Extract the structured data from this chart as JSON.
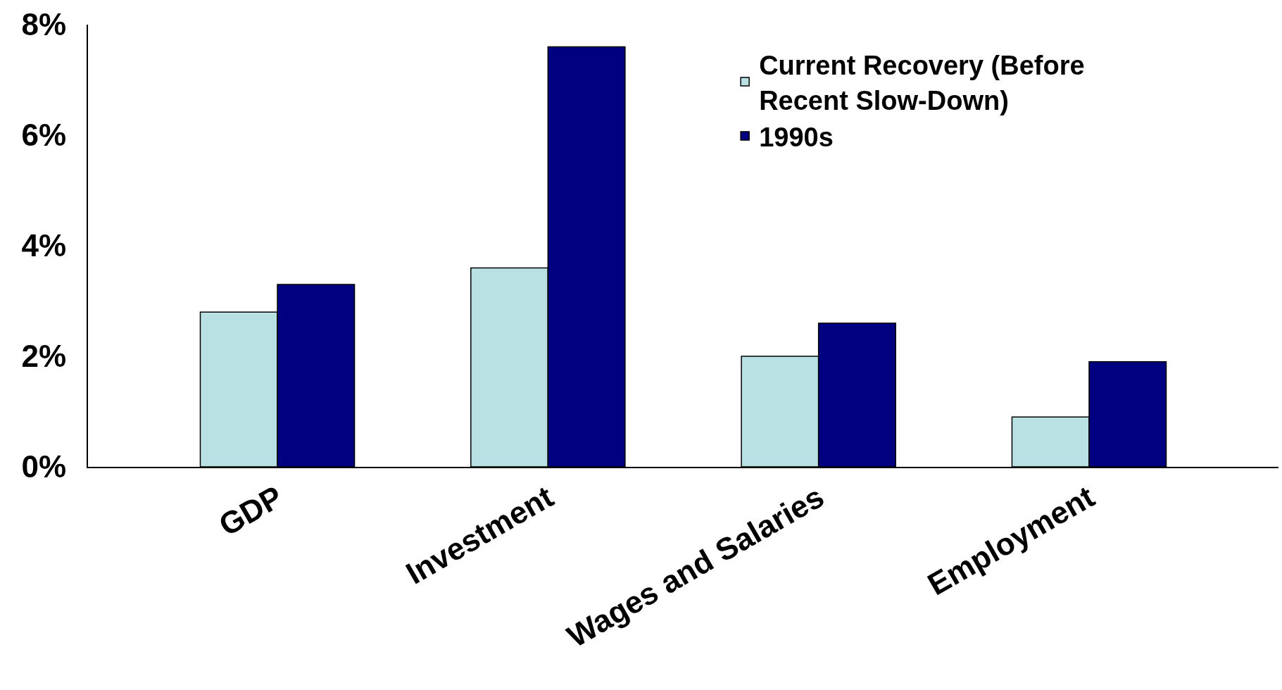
{
  "chart_data": {
    "type": "bar",
    "categories": [
      "GDP",
      "Investment",
      "Wages and Salaries",
      "Employment"
    ],
    "series": [
      {
        "name": "Current Recovery (Before Recent Slow-Down)",
        "color": "#b9e0e3",
        "values": [
          2.8,
          3.6,
          2.0,
          0.9
        ]
      },
      {
        "name": "1990s",
        "color": "#000080",
        "values": [
          3.3,
          7.6,
          2.6,
          1.9
        ]
      }
    ],
    "ylim": [
      0,
      8
    ],
    "yticks": [
      {
        "value": 0,
        "label": "0%"
      },
      {
        "value": 2,
        "label": "2%"
      },
      {
        "value": 4,
        "label": "4%"
      },
      {
        "value": 6,
        "label": "6%"
      },
      {
        "value": 8,
        "label": "8%"
      }
    ],
    "grid": false,
    "legend": "top right"
  }
}
